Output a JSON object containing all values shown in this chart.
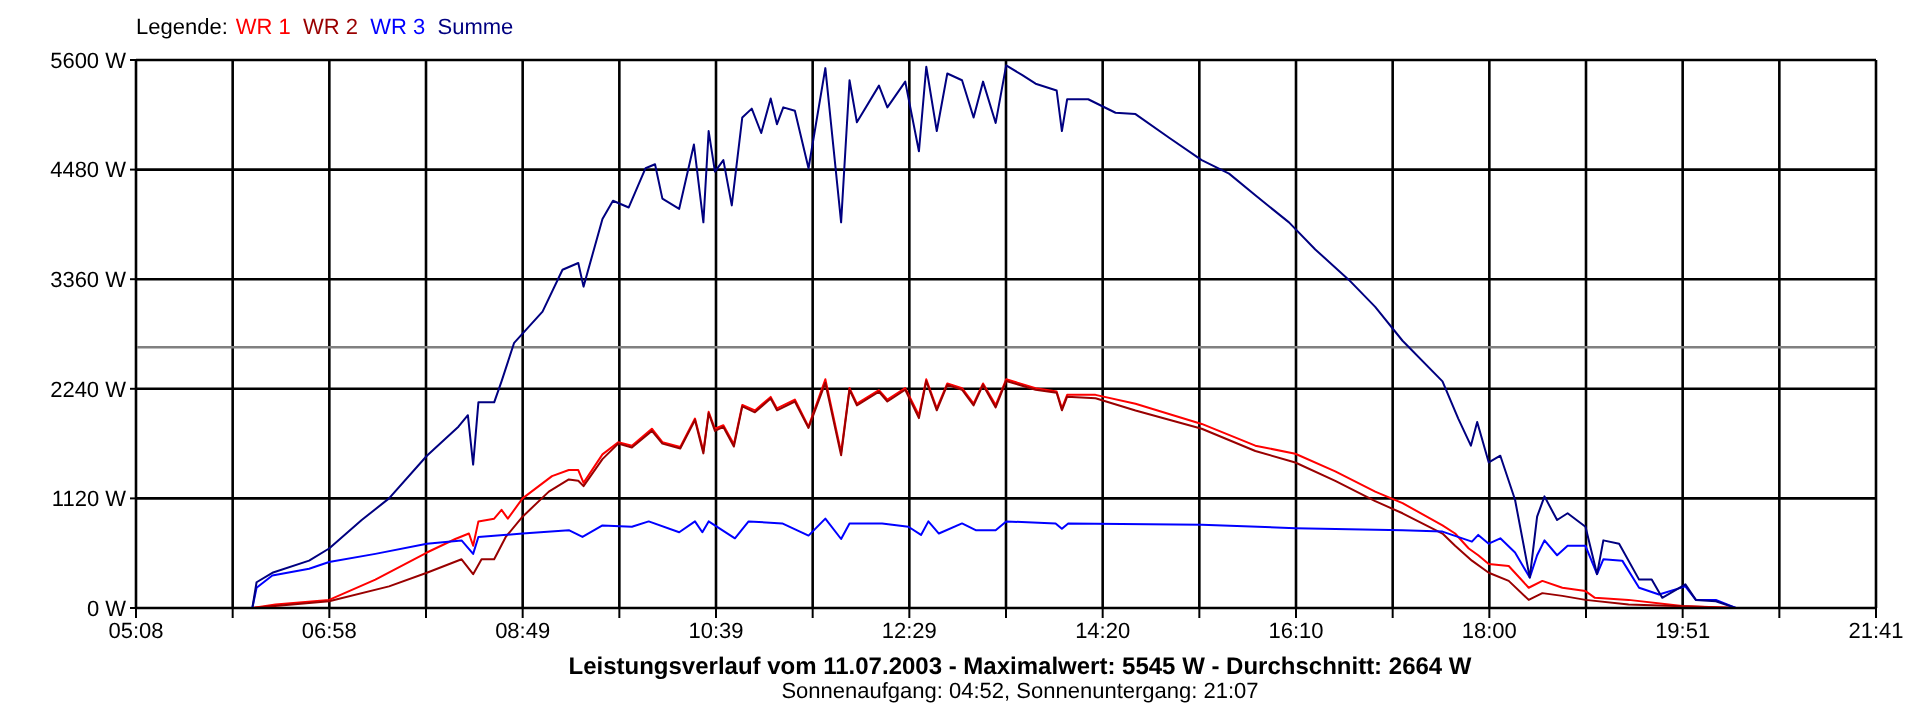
{
  "chart_data": {
    "type": "line",
    "title": "Leistungsverlauf vom 11.07.2003 - Maximalwert: 5545 W - Durchschnitt: 2664 W",
    "subtitle": "Sonnenaufgang: 04:52, Sonnenuntergang: 21:07",
    "legend_title": "Legende:",
    "legend": "top left",
    "grid": true,
    "xlim": [
      5.1333,
      21.6833
    ],
    "xticks": [
      {
        "value": 5.1333,
        "label": "05:08"
      },
      {
        "value": 6.0528,
        "label": null
      },
      {
        "value": 6.9722,
        "label": "06:58"
      },
      {
        "value": 7.8917,
        "label": null
      },
      {
        "value": 8.8111,
        "label": "08:49"
      },
      {
        "value": 9.7306,
        "label": null
      },
      {
        "value": 10.65,
        "label": "10:39"
      },
      {
        "value": 11.5694,
        "label": null
      },
      {
        "value": 12.4889,
        "label": "12:29"
      },
      {
        "value": 13.4083,
        "label": null
      },
      {
        "value": 14.3278,
        "label": "14:20"
      },
      {
        "value": 15.2472,
        "label": null
      },
      {
        "value": 16.1667,
        "label": "16:10"
      },
      {
        "value": 17.0861,
        "label": null
      },
      {
        "value": 18.0056,
        "label": "18:00"
      },
      {
        "value": 18.925,
        "label": null
      },
      {
        "value": 19.8444,
        "label": "19:51"
      },
      {
        "value": 20.7639,
        "label": null
      },
      {
        "value": 21.6833,
        "label": "21:41"
      }
    ],
    "ylim": [
      0,
      5600
    ],
    "yticks": [
      {
        "value": 0,
        "label": "0 W"
      },
      {
        "value": 1120,
        "label": "1120 W"
      },
      {
        "value": 2240,
        "label": "2240 W"
      },
      {
        "value": 3360,
        "label": "3360 W"
      },
      {
        "value": 4480,
        "label": "4480 W"
      },
      {
        "value": 5600,
        "label": "5600 W"
      }
    ],
    "ref_lines": [
      {
        "axis": "y",
        "value": 2664,
        "label": null,
        "color": "#808080"
      }
    ],
    "series": [
      {
        "name": "WR 1",
        "color": "#ff0000",
        "x": [
          6.24,
          6.46,
          6.97,
          7.41,
          7.9,
          8.17,
          8.3,
          8.34,
          8.39,
          8.54,
          8.61,
          8.67,
          8.81,
          9.09,
          9.25,
          9.34,
          9.39,
          9.57,
          9.72,
          9.85,
          10.04,
          10.14,
          10.31,
          10.45,
          10.53,
          10.58,
          10.64,
          10.72,
          10.82,
          10.9,
          11.02,
          11.17,
          11.23,
          11.4,
          11.53,
          11.69,
          11.84,
          11.92,
          11.99,
          12.2,
          12.28,
          12.45,
          12.58,
          12.65,
          12.75,
          12.85,
          12.99,
          13.1,
          13.19,
          13.31,
          13.41,
          13.69,
          13.89,
          13.94,
          13.99,
          14.26,
          14.64,
          15.27,
          15.78,
          16.16,
          16.54,
          16.92,
          17.18,
          17.56,
          17.68,
          17.81,
          17.9,
          18.0,
          18.19,
          18.38,
          18.51,
          18.7,
          18.92,
          19.01,
          19.33,
          19.84,
          20.35
        ],
        "values": [
          0,
          35,
          83,
          290,
          567,
          705,
          761,
          636,
          885,
          913,
          1003,
          913,
          1120,
          1348,
          1410,
          1410,
          1279,
          1570,
          1694,
          1659,
          1832,
          1694,
          1646,
          1936,
          1604,
          2005,
          1832,
          1867,
          1673,
          2074,
          2019,
          2157,
          2040,
          2130,
          1853,
          2337,
          1590,
          2247,
          2088,
          2226,
          2130,
          2247,
          1970,
          2337,
          2040,
          2295,
          2247,
          2088,
          2295,
          2074,
          2337,
          2247,
          2212,
          2040,
          2178,
          2178,
          2088,
          1881,
          1659,
          1576,
          1397,
          1189,
          1072,
          844,
          761,
          608,
          539,
          449,
          429,
          207,
          277,
          207,
          173,
          104,
          83,
          21,
          0
        ]
      },
      {
        "name": "WR 2",
        "color": "#990000",
        "x": [
          6.24,
          6.97,
          7.54,
          7.9,
          8.23,
          8.34,
          8.42,
          8.54,
          8.65,
          8.81,
          9.06,
          9.25,
          9.34,
          9.39,
          9.57,
          9.72,
          9.85,
          10.04,
          10.14,
          10.31,
          10.45,
          10.53,
          10.58,
          10.64,
          10.72,
          10.82,
          10.9,
          11.02,
          11.17,
          11.23,
          11.4,
          11.53,
          11.69,
          11.84,
          11.92,
          11.99,
          12.2,
          12.28,
          12.45,
          12.58,
          12.65,
          12.75,
          12.85,
          12.99,
          13.1,
          13.19,
          13.31,
          13.41,
          13.69,
          13.89,
          13.94,
          13.99,
          14.26,
          14.64,
          15.27,
          15.78,
          16.16,
          16.54,
          16.92,
          17.18,
          17.56,
          17.68,
          17.84,
          18.0,
          18.19,
          18.38,
          18.51,
          18.7,
          18.92,
          19.33,
          20.35
        ],
        "values": [
          0,
          69,
          221,
          360,
          498,
          346,
          498,
          498,
          726,
          933,
          1189,
          1314,
          1300,
          1245,
          1521,
          1680,
          1640,
          1810,
          1680,
          1630,
          1920,
          1580,
          1990,
          1810,
          1850,
          1650,
          2060,
          2000,
          2140,
          2020,
          2110,
          1840,
          2300,
          1560,
          2230,
          2070,
          2210,
          2110,
          2230,
          1940,
          2320,
          2020,
          2280,
          2230,
          2070,
          2280,
          2050,
          2320,
          2230,
          2200,
          2020,
          2160,
          2143,
          2019,
          1832,
          1604,
          1487,
          1300,
          1092,
          968,
          761,
          636,
          484,
          360,
          277,
          83,
          152,
          124,
          83,
          35,
          0
        ]
      },
      {
        "name": "WR 3",
        "color": "#0000ff",
        "x": [
          6.14,
          6.24,
          6.28,
          6.43,
          6.78,
          6.97,
          7.41,
          7.9,
          8.23,
          8.34,
          8.39,
          8.81,
          9.25,
          9.38,
          9.57,
          9.85,
          10.01,
          10.3,
          10.45,
          10.52,
          10.58,
          10.83,
          10.96,
          11.28,
          11.53,
          11.69,
          11.84,
          11.92,
          12.23,
          12.48,
          12.6,
          12.67,
          12.77,
          12.99,
          13.12,
          13.31,
          13.41,
          13.88,
          13.94,
          14.0,
          15.27,
          16.16,
          17.18,
          17.56,
          17.84,
          17.9,
          18.0,
          18.11,
          18.25,
          18.39,
          18.46,
          18.53,
          18.65,
          18.75,
          18.92,
          19.03,
          19.09,
          19.27,
          19.43,
          19.62,
          19.87,
          19.97,
          20.16,
          20.35
        ],
        "values": [
          0,
          0,
          207,
          332,
          401,
          470,
          553,
          657,
          691,
          553,
          726,
          761,
          795,
          726,
          844,
          830,
          885,
          774,
          885,
          774,
          885,
          712,
          885,
          864,
          740,
          913,
          705,
          864,
          864,
          830,
          747,
          885,
          761,
          864,
          795,
          795,
          885,
          864,
          809,
          864,
          850,
          816,
          795,
          781,
          678,
          747,
          657,
          712,
          567,
          311,
          539,
          691,
          539,
          636,
          636,
          346,
          498,
          484,
          207,
          138,
          221,
          83,
          83,
          0
        ]
      },
      {
        "name": "Summe",
        "color": "#000080",
        "x": [
          6.14,
          6.24,
          6.28,
          6.43,
          6.78,
          6.97,
          7.28,
          7.54,
          7.9,
          8.2,
          8.29,
          8.34,
          8.39,
          8.54,
          8.61,
          8.73,
          9.0,
          9.19,
          9.34,
          9.39,
          9.57,
          9.67,
          9.82,
          9.98,
          10.07,
          10.14,
          10.3,
          10.44,
          10.53,
          10.58,
          10.64,
          10.72,
          10.8,
          10.9,
          10.99,
          11.08,
          11.17,
          11.23,
          11.29,
          11.4,
          11.53,
          11.69,
          11.84,
          11.92,
          11.99,
          12.2,
          12.28,
          12.45,
          12.58,
          12.65,
          12.75,
          12.85,
          12.99,
          13.1,
          13.19,
          13.31,
          13.41,
          13.56,
          13.69,
          13.89,
          13.94,
          13.99,
          14.19,
          14.45,
          14.64,
          14.96,
          15.27,
          15.53,
          15.78,
          16.1,
          16.35,
          16.67,
          16.92,
          17.18,
          17.56,
          17.71,
          17.83,
          17.89,
          18.0,
          18.11,
          18.25,
          18.39,
          18.46,
          18.53,
          18.65,
          18.75,
          18.92,
          19.03,
          19.09,
          19.24,
          19.43,
          19.55,
          19.65,
          19.87,
          19.97,
          20.16,
          20.35
        ],
        "values": [
          0,
          0,
          263,
          360,
          484,
          608,
          899,
          1120,
          1556,
          1853,
          1970,
          1466,
          2102,
          2102,
          2316,
          2710,
          3028,
          3457,
          3526,
          3284,
          3976,
          4162,
          4093,
          4494,
          4535,
          4183,
          4079,
          4736,
          3941,
          4874,
          4460,
          4577,
          4114,
          5013,
          5103,
          4854,
          5206,
          4944,
          5116,
          5082,
          4494,
          5517,
          3941,
          5393,
          4964,
          5338,
          5116,
          5379,
          4667,
          5531,
          4874,
          5462,
          5393,
          5013,
          5379,
          4957,
          5545,
          5448,
          5358,
          5289,
          4874,
          5199,
          5199,
          5061,
          5047,
          4805,
          4577,
          4439,
          4217,
          3941,
          3664,
          3353,
          3077,
          2731,
          2316,
          1936,
          1659,
          1901,
          1487,
          1556,
          1106,
          311,
          933,
          1141,
          899,
          968,
          830,
          346,
          691,
          657,
          290,
          290,
          104,
          242,
          83,
          69,
          0
        ]
      }
    ]
  }
}
